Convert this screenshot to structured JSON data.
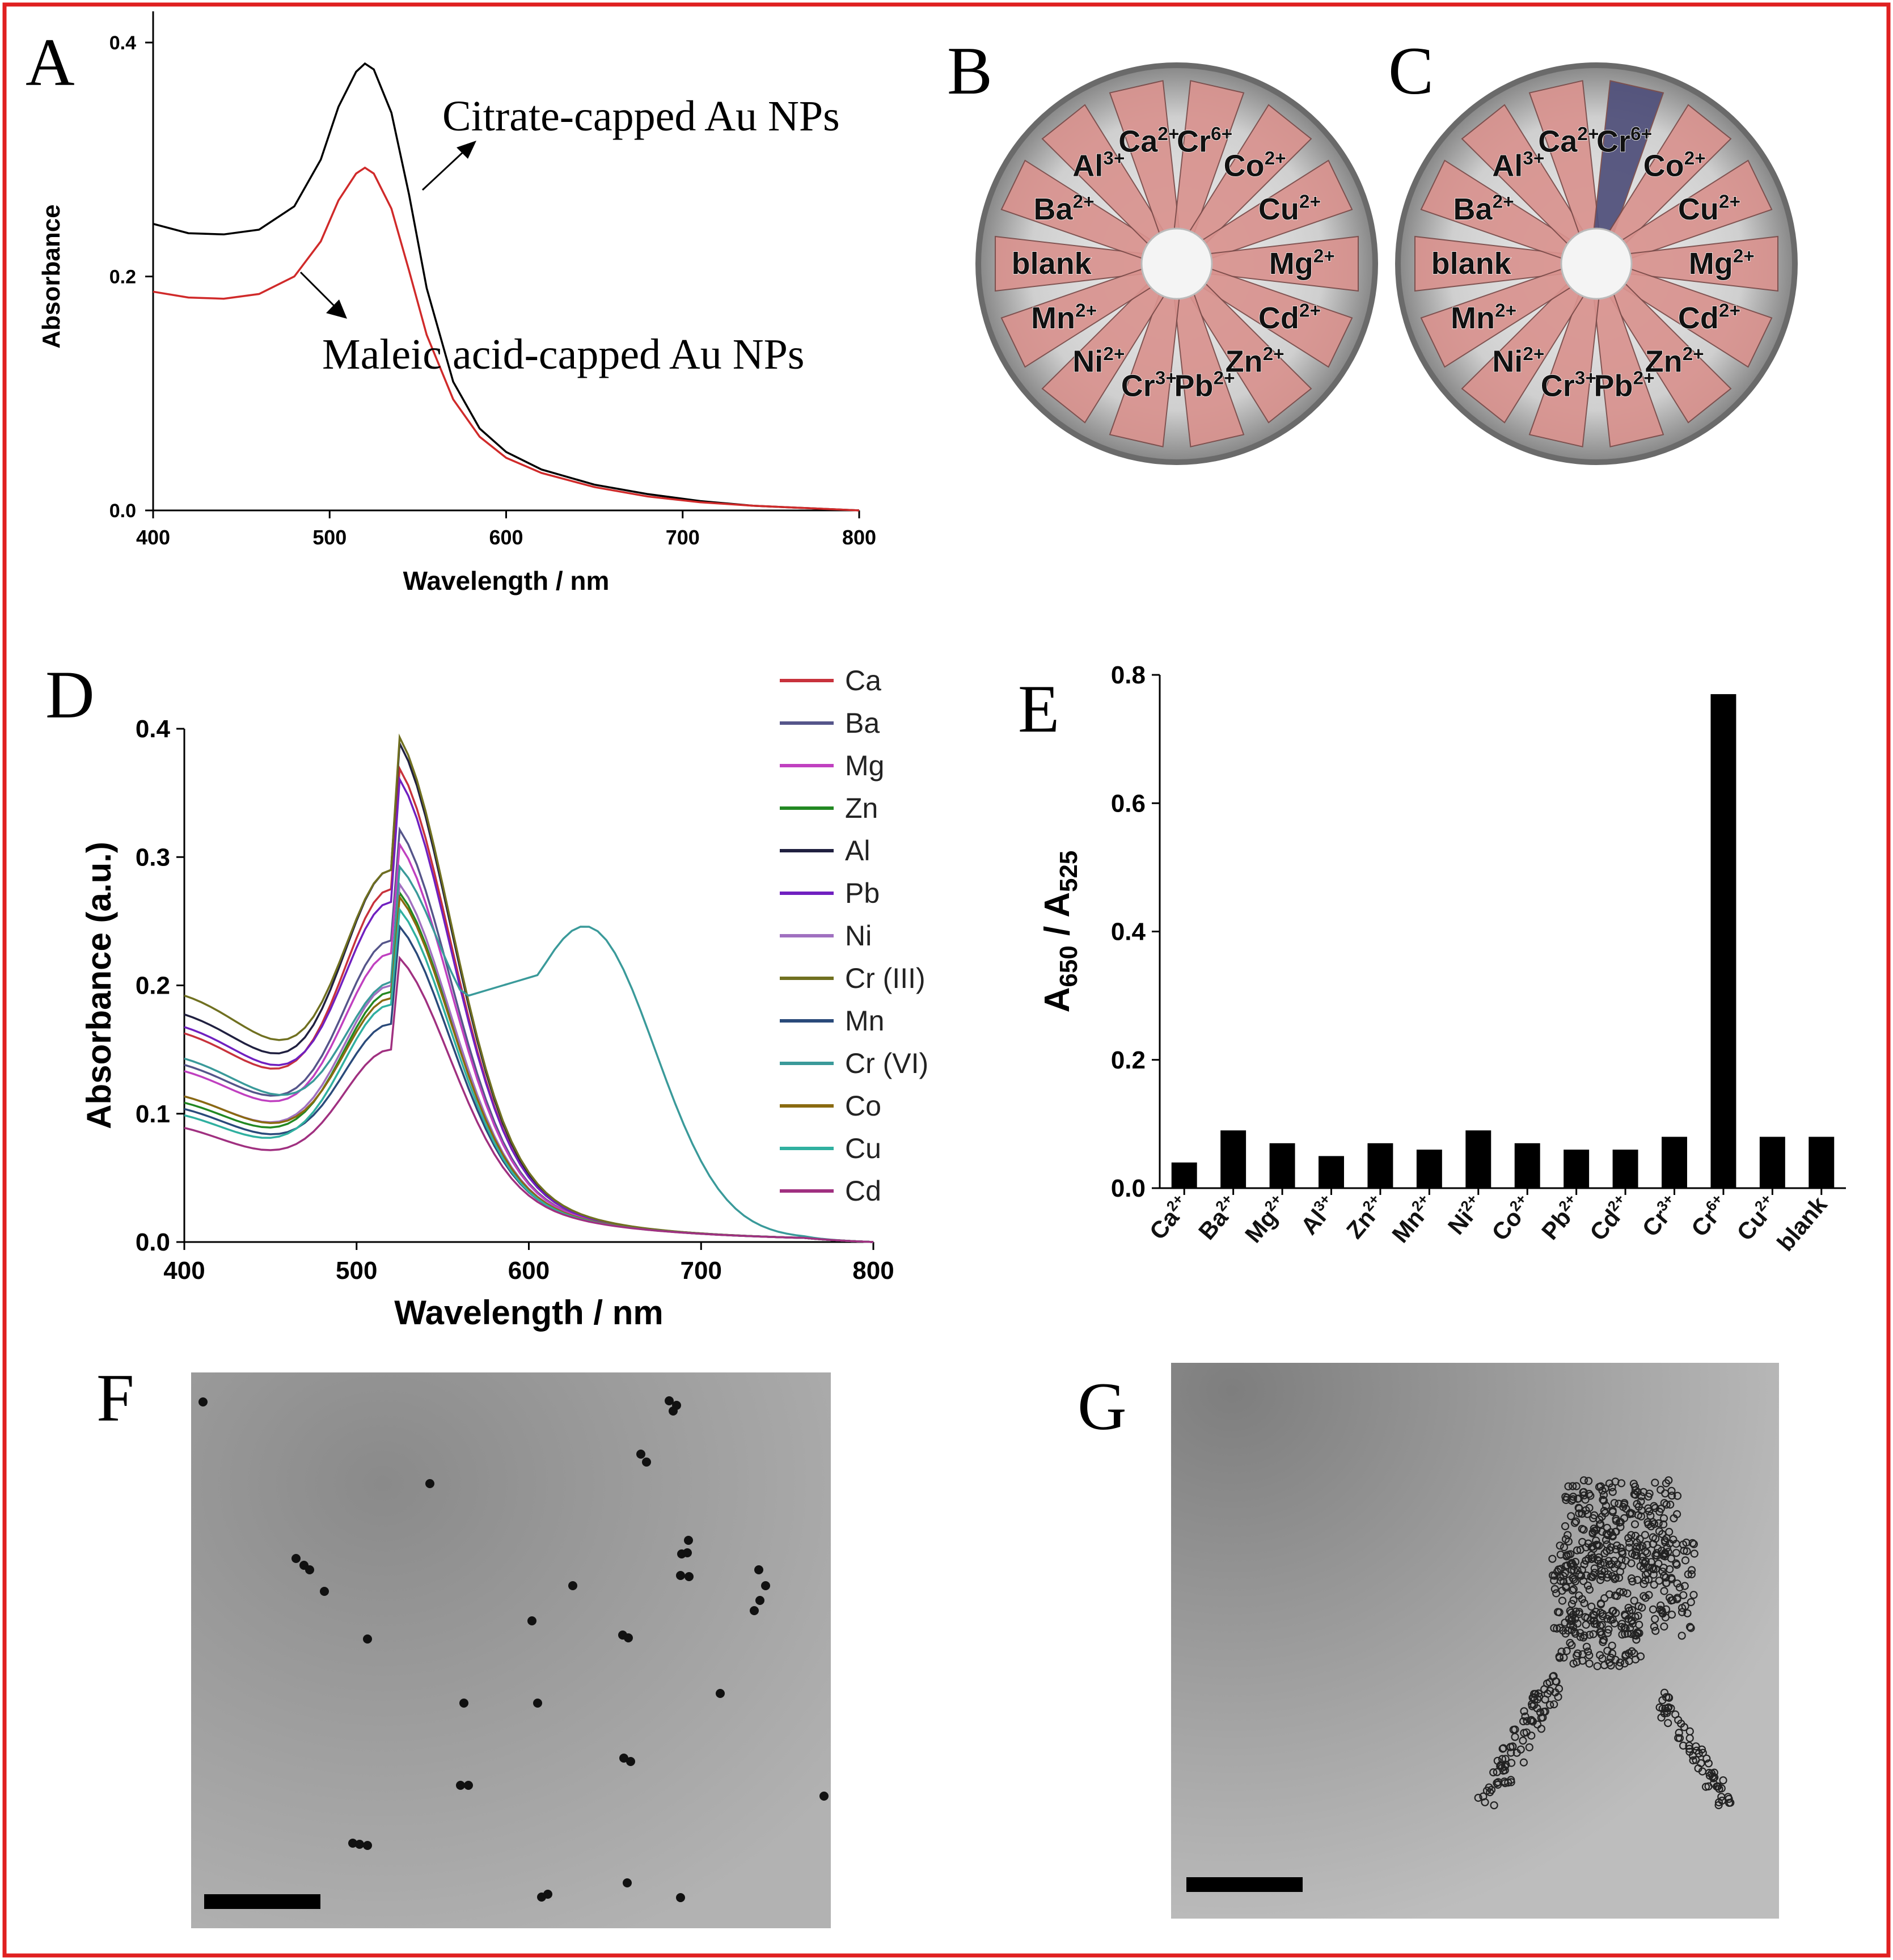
{
  "figure": {
    "border_color": "#e02020",
    "panels": {
      "A": {
        "letter": "A",
        "chart_data": {
          "type": "line",
          "title": "",
          "xlabel": "Wavelength / nm",
          "ylabel": "Absorbance",
          "xlim": [
            400,
            800
          ],
          "ylim": [
            0,
            0.4
          ],
          "xticks": [
            400,
            500,
            600,
            700,
            800
          ],
          "yticks": [
            0.0,
            0.2,
            0.4
          ],
          "ytick_labels": [
            "0.0",
            "0.2",
            "0.4"
          ],
          "series": [
            {
              "color": "#000000",
              "x": [
                400,
                420,
                440,
                460,
                480,
                495,
                505,
                515,
                520,
                525,
                535,
                545,
                555,
                570,
                585,
                600,
                620,
                650,
                680,
                710,
                740,
                770,
                800
              ],
              "y": [
                0.245,
                0.237,
                0.236,
                0.24,
                0.26,
                0.3,
                0.345,
                0.375,
                0.382,
                0.377,
                0.34,
                0.27,
                0.19,
                0.11,
                0.07,
                0.05,
                0.035,
                0.022,
                0.014,
                0.008,
                0.004,
                0.002,
                0.0
              ]
            },
            {
              "color": "#d02a2a",
              "x": [
                400,
                420,
                440,
                460,
                480,
                495,
                505,
                515,
                520,
                525,
                535,
                545,
                555,
                570,
                585,
                600,
                620,
                650,
                680,
                710,
                740,
                770,
                800
              ],
              "y": [
                0.187,
                0.182,
                0.181,
                0.185,
                0.2,
                0.23,
                0.265,
                0.288,
                0.293,
                0.288,
                0.258,
                0.205,
                0.15,
                0.095,
                0.063,
                0.045,
                0.032,
                0.02,
                0.012,
                0.007,
                0.004,
                0.002,
                0.0
              ]
            }
          ],
          "annotations": [
            {
              "text": "Citrate-capped Au NPs"
            },
            {
              "text": "Maleic acid-capped Au NPs"
            }
          ]
        }
      },
      "B": {
        "letter": "B",
        "ions": [
          {
            "base": "blank",
            "sup": ""
          },
          {
            "base": "Ba",
            "sup": "2+"
          },
          {
            "base": "Al",
            "sup": "3+"
          },
          {
            "base": "Ca",
            "sup": "2+"
          },
          {
            "base": "Cr",
            "sup": "6+"
          },
          {
            "base": "Co",
            "sup": "2+"
          },
          {
            "base": "Cu",
            "sup": "2+"
          },
          {
            "base": "Mg",
            "sup": "2+"
          },
          {
            "base": "Cd",
            "sup": "2+"
          },
          {
            "base": "Zn",
            "sup": "2+"
          },
          {
            "base": "Pb",
            "sup": "2+"
          },
          {
            "base": "Cr",
            "sup": "3+"
          },
          {
            "base": "Ni",
            "sup": "2+"
          },
          {
            "base": "Mn",
            "sup": "2+"
          }
        ],
        "tube_color": "#d9938f",
        "highlight_color": "#d9938f"
      },
      "C": {
        "letter": "C",
        "tube_color": "#d9938f",
        "highlight_color": "#4f4f7a"
      },
      "D": {
        "letter": "D",
        "chart_data": {
          "type": "line",
          "title": "",
          "xlabel": "Wavelength / nm",
          "ylabel": "Absorbance (a.u.)",
          "xlim": [
            400,
            800
          ],
          "ylim": [
            0,
            0.4
          ],
          "xticks": [
            400,
            500,
            600,
            700,
            800
          ],
          "yticks": [
            0.0,
            0.1,
            0.2,
            0.3,
            0.4
          ],
          "ytick_labels": [
            "0.0",
            "0.1",
            "0.2",
            "0.3",
            "0.4"
          ],
          "legend_position": "top-right",
          "series": [
            {
              "name": "Ca",
              "color": "#c8323c",
              "base": 0.17,
              "peak": 0.275
            },
            {
              "name": "Ba",
              "color": "#55558a",
              "base": 0.145,
              "peak": 0.235
            },
            {
              "name": "Mg",
              "color": "#c040c0",
              "base": 0.14,
              "peak": 0.225
            },
            {
              "name": "Zn",
              "color": "#228822",
              "base": 0.115,
              "peak": 0.195
            },
            {
              "name": "Al",
              "color": "#202040",
              "base": 0.185,
              "peak": 0.29
            },
            {
              "name": "Pb",
              "color": "#7020c0",
              "base": 0.175,
              "peak": 0.265
            },
            {
              "name": "Ni",
              "color": "#a070c0",
              "base": 0.12,
              "peak": 0.2
            },
            {
              "name": "Cr (III)",
              "color": "#707020",
              "base": 0.2,
              "peak": 0.29
            },
            {
              "name": "Mn",
              "color": "#2a4a7a",
              "base": 0.11,
              "peak": 0.17
            },
            {
              "name": "Cr (VI)",
              "color": "#3a9a9a",
              "base": 0.15,
              "peak": 0.2,
              "peak2_x": 635,
              "peak2": 0.228
            },
            {
              "name": "Co",
              "color": "#8a6a10",
              "base": 0.12,
              "peak": 0.19
            },
            {
              "name": "Cu",
              "color": "#30b0a0",
              "base": 0.105,
              "peak": 0.185
            },
            {
              "name": "Cd",
              "color": "#a03080",
              "base": 0.095,
              "peak": 0.15
            }
          ]
        }
      },
      "E": {
        "letter": "E",
        "chart_data": {
          "type": "bar",
          "title": "",
          "xlabel": "",
          "ylabel": "A650 / A525",
          "ylim": [
            0,
            0.8
          ],
          "yticks": [
            0.0,
            0.2,
            0.4,
            0.6,
            0.8
          ],
          "ytick_labels": [
            "0.0",
            "0.2",
            "0.4",
            "0.6",
            "0.8"
          ],
          "categories": [
            {
              "base": "Ca",
              "sup": "2+"
            },
            {
              "base": "Ba",
              "sup": "2+"
            },
            {
              "base": "Mg",
              "sup": "2+"
            },
            {
              "base": "Al",
              "sup": "3+"
            },
            {
              "base": "Zn",
              "sup": "2+"
            },
            {
              "base": "Mn",
              "sup": "2+"
            },
            {
              "base": "Ni",
              "sup": "2+"
            },
            {
              "base": "Co",
              "sup": "2+"
            },
            {
              "base": "Pb",
              "sup": "2+"
            },
            {
              "base": "Cd",
              "sup": "2+"
            },
            {
              "base": "Cr",
              "sup": "3+"
            },
            {
              "base": "Cr",
              "sup": "6+"
            },
            {
              "base": "Cu",
              "sup": "2+"
            },
            {
              "base": "blank",
              "sup": ""
            }
          ],
          "values": [
            0.04,
            0.09,
            0.07,
            0.05,
            0.07,
            0.06,
            0.09,
            0.07,
            0.06,
            0.06,
            0.08,
            0.77,
            0.08,
            0.08
          ]
        }
      },
      "F": {
        "letter": "F"
      },
      "G": {
        "letter": "G"
      }
    }
  }
}
